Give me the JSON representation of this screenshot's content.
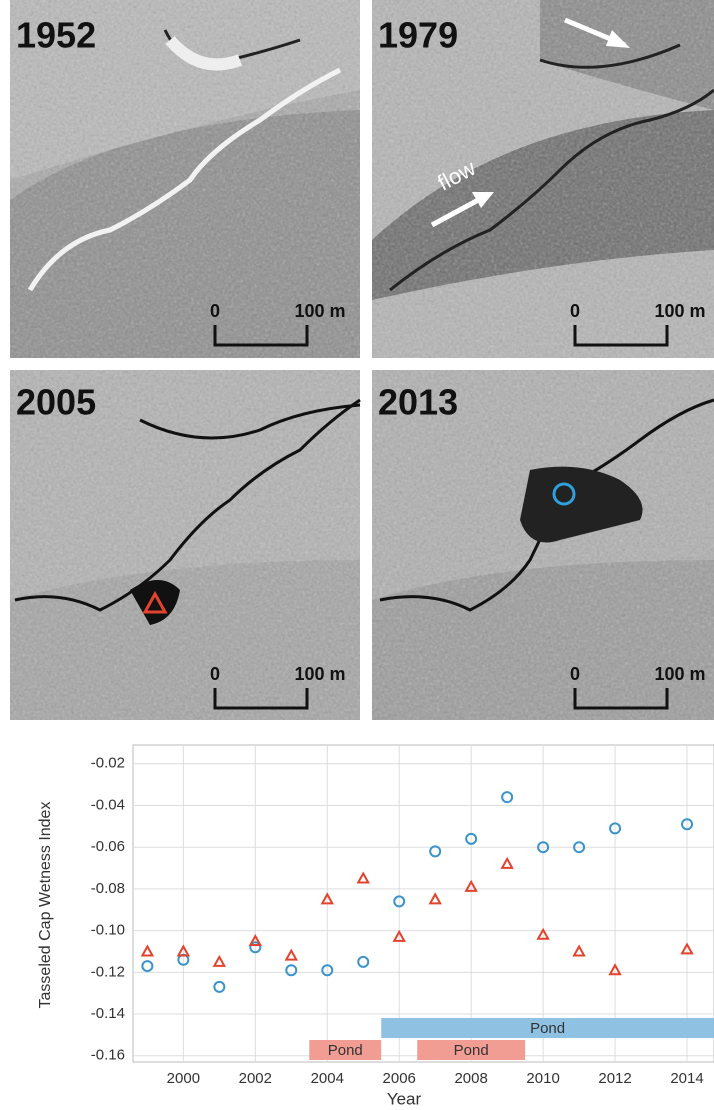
{
  "panels": [
    {
      "year": "1952",
      "scale_start": "0",
      "scale_end": "100 m"
    },
    {
      "year": "1979",
      "scale_start": "0",
      "scale_end": "100 m",
      "annotation": "flow"
    },
    {
      "year": "2005",
      "scale_start": "0",
      "scale_end": "100 m"
    },
    {
      "year": "2013",
      "scale_start": "0",
      "scale_end": "100 m"
    }
  ],
  "chart_data": {
    "type": "scatter",
    "xlabel": "Year",
    "ylabel": "Tasseled Cap Wetness Index",
    "xlim": [
      1998.6,
      2014.75
    ],
    "ylim": [
      -0.163,
      -0.011
    ],
    "xticks": [
      2000,
      2002,
      2004,
      2006,
      2008,
      2010,
      2012,
      2014
    ],
    "yticks": [
      -0.02,
      -0.04,
      -0.06,
      -0.08,
      {
        "value": -0.1,
        "label": "-0.10"
      },
      -0.12,
      -0.14,
      -0.16
    ],
    "grid": true,
    "series": [
      {
        "marker": "circle",
        "color": "#3a93cc",
        "x": [
          1999,
          2000,
          2001,
          2002,
          2003,
          2004,
          2005,
          2006,
          2007,
          2008,
          2009,
          2010,
          2011,
          2012,
          2014
        ],
        "values": [
          -0.117,
          -0.114,
          -0.127,
          -0.108,
          -0.119,
          -0.119,
          -0.115,
          -0.086,
          -0.062,
          -0.056,
          -0.036,
          -0.06,
          -0.06,
          -0.051,
          -0.049
        ]
      },
      {
        "marker": "triangle",
        "color": "#e2432c",
        "x": [
          1999,
          2000,
          2001,
          2002,
          2003,
          2004,
          2005,
          2006,
          2007,
          2008,
          2009,
          2010,
          2011,
          2012,
          2014
        ],
        "values": [
          -0.11,
          -0.11,
          -0.115,
          -0.105,
          -0.112,
          -0.085,
          -0.075,
          -0.103,
          -0.085,
          -0.079,
          -0.068,
          -0.102,
          -0.11,
          -0.119,
          -0.109
        ]
      }
    ],
    "periods": [
      {
        "label": "Pond",
        "start": 2003.5,
        "end": 2005.5,
        "color": "#f19d94",
        "row": 2
      },
      {
        "label": "Pond",
        "start": 2006.5,
        "end": 2009.5,
        "color": "#f19d94",
        "row": 2
      },
      {
        "label": "Pond",
        "start": 2005.5,
        "end": 2015,
        "color": "#8fc1e3",
        "row": 1
      }
    ]
  }
}
